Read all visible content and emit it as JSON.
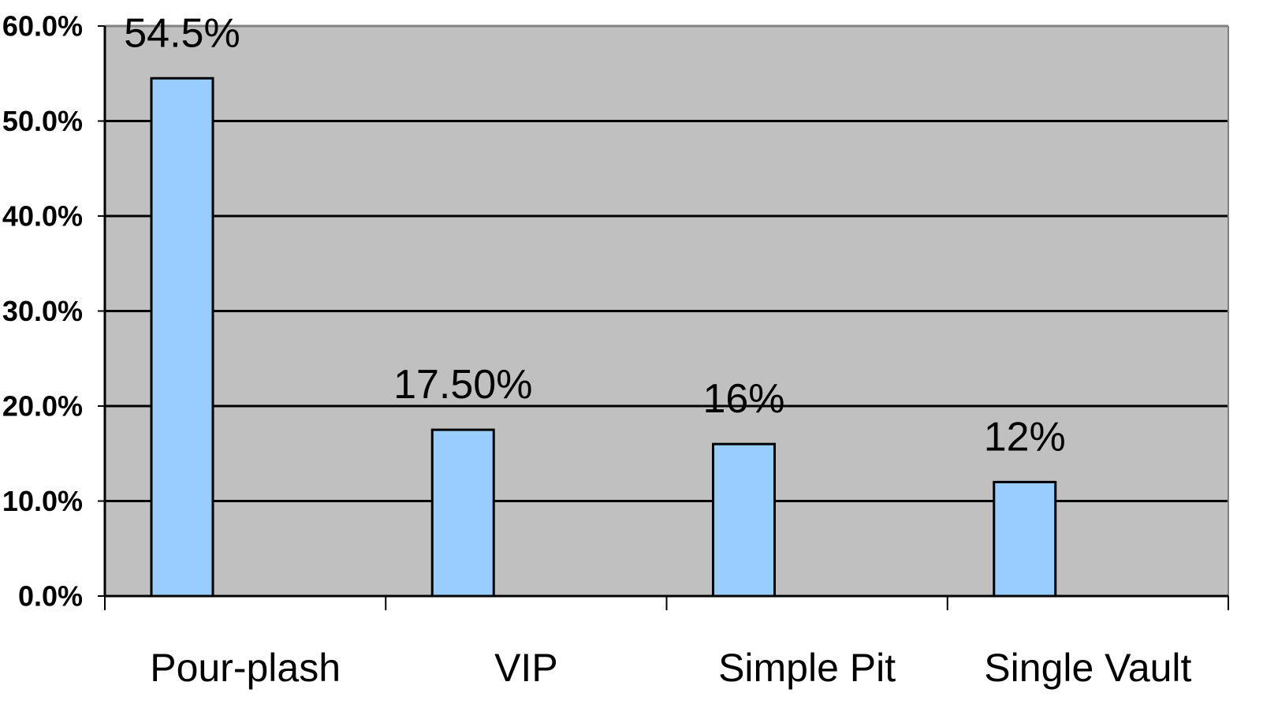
{
  "chart_data": {
    "type": "bar",
    "categories": [
      "Pour-plash",
      "VIP",
      "Simple Pit",
      "Single Vault"
    ],
    "values": [
      54.5,
      17.5,
      16,
      12
    ],
    "data_labels": [
      "54.5%",
      "17.50%",
      "16%",
      "12%"
    ],
    "y_ticks": [
      0,
      10,
      20,
      30,
      40,
      50,
      60
    ],
    "y_tick_labels": [
      "0.0%",
      "10.0%",
      "20.0%",
      "30.0%",
      "40.0%",
      "50.0%",
      "60.0%"
    ],
    "ylim": [
      0,
      60
    ],
    "grid": true,
    "legend": "none",
    "colors": {
      "bar_fill": "#99ccff",
      "bar_stroke": "#000000",
      "plot_background": "#c0c0c0",
      "gridline": "#000000",
      "plot_border": "#808080"
    }
  }
}
